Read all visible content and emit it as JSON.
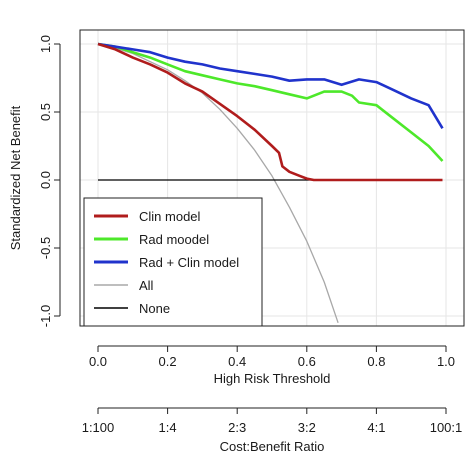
{
  "chart_data": {
    "type": "line",
    "xlabel": "High Risk Threshold",
    "ylabel": "Standardized Net Benefit",
    "xlim": [
      0,
      1
    ],
    "ylim": [
      -1.0,
      1.0
    ],
    "x_ticks": [
      "0.0",
      "0.2",
      "0.4",
      "0.6",
      "0.8",
      "1.0"
    ],
    "y_ticks": [
      "-1.0",
      "-0.5",
      "0.0",
      "0.5",
      "1.0"
    ],
    "secondary_axis": {
      "label": "Cost:Benefit Ratio",
      "ticks": [
        "1:100",
        "1:4",
        "2:3",
        "3:2",
        "4:1",
        "100:1"
      ]
    },
    "grid": true,
    "legend_position": "bottom-left",
    "series": [
      {
        "name": "Clin model",
        "color": "#b01c1c",
        "x": [
          0.0,
          0.05,
          0.1,
          0.15,
          0.2,
          0.25,
          0.3,
          0.35,
          0.4,
          0.45,
          0.5,
          0.52,
          0.53,
          0.55,
          0.58,
          0.6,
          0.62,
          0.7,
          0.8,
          0.9,
          0.99
        ],
        "y": [
          1.0,
          0.96,
          0.9,
          0.85,
          0.79,
          0.71,
          0.65,
          0.56,
          0.47,
          0.37,
          0.25,
          0.2,
          0.1,
          0.06,
          0.03,
          0.01,
          0.0,
          0.0,
          0.0,
          0.0,
          0.0
        ]
      },
      {
        "name": "Rad moodel",
        "color": "#4de82a",
        "x": [
          0.0,
          0.05,
          0.1,
          0.15,
          0.2,
          0.25,
          0.3,
          0.35,
          0.4,
          0.45,
          0.5,
          0.55,
          0.6,
          0.65,
          0.7,
          0.73,
          0.75,
          0.8,
          0.85,
          0.9,
          0.95,
          0.99
        ],
        "y": [
          1.0,
          0.98,
          0.94,
          0.9,
          0.85,
          0.8,
          0.77,
          0.74,
          0.71,
          0.69,
          0.66,
          0.63,
          0.6,
          0.65,
          0.65,
          0.62,
          0.57,
          0.55,
          0.45,
          0.35,
          0.25,
          0.14
        ]
      },
      {
        "name": "Rad + Clin model",
        "color": "#2033cc",
        "x": [
          0.0,
          0.05,
          0.1,
          0.15,
          0.2,
          0.25,
          0.3,
          0.35,
          0.4,
          0.45,
          0.5,
          0.55,
          0.6,
          0.65,
          0.7,
          0.75,
          0.8,
          0.85,
          0.9,
          0.95,
          0.99
        ],
        "y": [
          1.0,
          0.98,
          0.96,
          0.94,
          0.9,
          0.87,
          0.85,
          0.82,
          0.8,
          0.78,
          0.76,
          0.73,
          0.74,
          0.74,
          0.7,
          0.74,
          0.72,
          0.66,
          0.6,
          0.55,
          0.38
        ]
      },
      {
        "name": "All",
        "color": "#a8a8a8",
        "x": [
          0.0,
          0.05,
          0.1,
          0.15,
          0.2,
          0.25,
          0.3,
          0.35,
          0.4,
          0.45,
          0.5,
          0.55,
          0.6,
          0.65,
          0.69
        ],
        "y": [
          1.0,
          0.97,
          0.93,
          0.87,
          0.81,
          0.73,
          0.64,
          0.52,
          0.38,
          0.22,
          0.03,
          -0.2,
          -0.45,
          -0.75,
          -1.05
        ]
      },
      {
        "name": "None",
        "color": "#000000",
        "x": [
          0.0,
          0.99
        ],
        "y": [
          0.0,
          0.0
        ]
      }
    ]
  }
}
